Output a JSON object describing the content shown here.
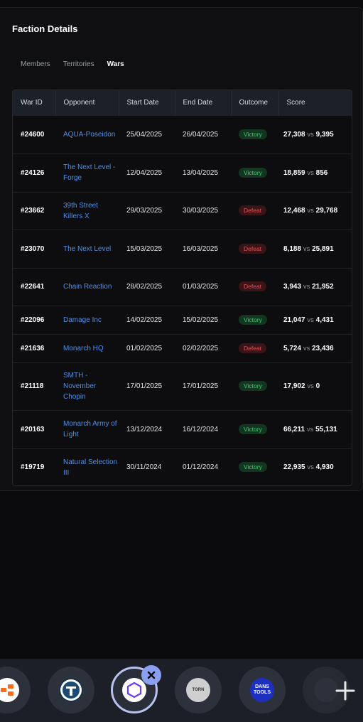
{
  "header": {
    "title": "Faction Details"
  },
  "tabs": [
    {
      "label": "Members",
      "active": false
    },
    {
      "label": "Territories",
      "active": false
    },
    {
      "label": "Wars",
      "active": true
    }
  ],
  "table": {
    "columns": [
      "War ID",
      "Opponent",
      "Start Date",
      "End Date",
      "Outcome",
      "Score"
    ],
    "vs_label": "vs",
    "rows": [
      {
        "id": "#24600",
        "opponent": "AQUA-Poseidon",
        "start": "25/04/2025",
        "end": "26/04/2025",
        "outcome": "Victory",
        "score_us": "27,308",
        "score_them": "9,395"
      },
      {
        "id": "#24126",
        "opponent": "The Next Level - Forge",
        "start": "12/04/2025",
        "end": "13/04/2025",
        "outcome": "Victory",
        "score_us": "18,859",
        "score_them": "856"
      },
      {
        "id": "#23662",
        "opponent": "39th Street Killers X",
        "start": "29/03/2025",
        "end": "30/03/2025",
        "outcome": "Defeat",
        "score_us": "12,468",
        "score_them": "29,768"
      },
      {
        "id": "#23070",
        "opponent": "The Next Level",
        "start": "15/03/2025",
        "end": "16/03/2025",
        "outcome": "Defeat",
        "score_us": "8,188",
        "score_them": "25,891"
      },
      {
        "id": "#22641",
        "opponent": "Chain Reaction",
        "start": "28/02/2025",
        "end": "01/03/2025",
        "outcome": "Defeat",
        "score_us": "3,943",
        "score_them": "21,952"
      },
      {
        "id": "#22096",
        "opponent": "Damage Inc",
        "start": "14/02/2025",
        "end": "15/02/2025",
        "outcome": "Victory",
        "score_us": "21,047",
        "score_them": "4,431"
      },
      {
        "id": "#21636",
        "opponent": "Monarch HQ",
        "start": "01/02/2025",
        "end": "02/02/2025",
        "outcome": "Defeat",
        "score_us": "5,724",
        "score_them": "23,436"
      },
      {
        "id": "#21118",
        "opponent": "SMTH - November Chopin",
        "start": "17/01/2025",
        "end": "17/01/2025",
        "outcome": "Victory",
        "score_us": "17,902",
        "score_them": "0"
      },
      {
        "id": "#20163",
        "opponent": "Monarch Army of Light",
        "start": "13/12/2024",
        "end": "16/12/2024",
        "outcome": "Victory",
        "score_us": "66,211",
        "score_them": "55,131"
      },
      {
        "id": "#19719",
        "opponent": "Natural Selection III",
        "start": "30/11/2024",
        "end": "01/12/2024",
        "outcome": "Victory",
        "score_us": "22,935",
        "score_them": "4,930"
      }
    ]
  },
  "dock": {
    "apps": [
      {
        "name": "app-orange-icon"
      },
      {
        "name": "app-torn-t-icon"
      },
      {
        "name": "app-hexagon-icon",
        "active": true
      },
      {
        "name": "app-torn-badge-icon",
        "text": "TORN"
      },
      {
        "name": "app-dans-tools-icon",
        "text": "DANS TOOLS"
      },
      {
        "name": "app-partial-icon"
      }
    ],
    "close_icon": "close-icon",
    "add_icon": "plus-icon"
  },
  "colors": {
    "background": "#0b0b0d",
    "link": "#4f8fe6",
    "victory": "#3fcf6e",
    "defeat": "#e0545b",
    "header_row": "#1b2029",
    "active_ring": "#b9c2ee"
  }
}
